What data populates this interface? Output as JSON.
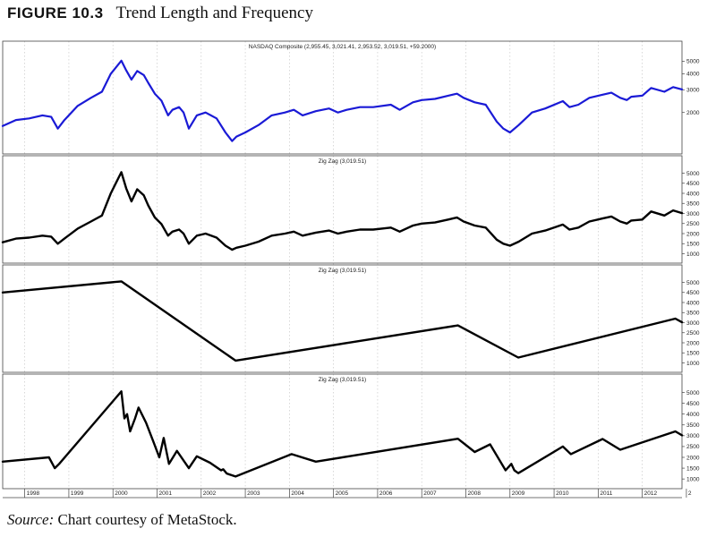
{
  "figure": {
    "number": "FIGURE 10.3",
    "title": "Trend Length and Frequency"
  },
  "source": {
    "label": "Source:",
    "text": "Chart courtesy of MetaStock."
  },
  "chart_data": {
    "type": "line",
    "x_labels": [
      "1998",
      "1999",
      "2000",
      "2001",
      "2002",
      "2003",
      "2004",
      "2005",
      "2006",
      "2007",
      "2008",
      "2009",
      "2010",
      "2011",
      "2012",
      "2"
    ],
    "x_range": [
      1997.5,
      2012.9
    ],
    "grid": true,
    "panels": [
      {
        "title": "NASDAQ Composite (2,955.45, 3,021.41, 2,953.52, 3,019.51, +59.2000)",
        "scale": "log",
        "y_range": [
          1050,
          6500
        ],
        "y_ticks": [
          5000,
          4000,
          3000,
          2000
        ],
        "color": "#1a1ad6",
        "x": [
          1997.5,
          1997.8,
          1998.1,
          1998.4,
          1998.6,
          1998.75,
          1998.9,
          1999.2,
          1999.5,
          1999.75,
          1999.95,
          2000.19,
          2000.3,
          2000.42,
          2000.55,
          2000.7,
          2000.8,
          2000.95,
          2001.1,
          2001.25,
          2001.35,
          2001.5,
          2001.6,
          2001.72,
          2001.9,
          2002.1,
          2002.35,
          2002.55,
          2002.7,
          2002.8,
          2003.0,
          2003.3,
          2003.6,
          2003.9,
          2004.1,
          2004.3,
          2004.6,
          2004.9,
          2005.1,
          2005.3,
          2005.6,
          2005.9,
          2006.3,
          2006.5,
          2006.8,
          2007.0,
          2007.3,
          2007.6,
          2007.8,
          2007.95,
          2008.2,
          2008.45,
          2008.7,
          2008.85,
          2009.0,
          2009.2,
          2009.5,
          2009.8,
          2010.2,
          2010.35,
          2010.55,
          2010.8,
          2011.1,
          2011.3,
          2011.5,
          2011.65,
          2011.75,
          2012.0,
          2012.2,
          2012.5,
          2012.7,
          2012.9
        ],
        "y": [
          1570,
          1750,
          1800,
          1900,
          1850,
          1500,
          1750,
          2250,
          2600,
          2900,
          4000,
          5048,
          4250,
          3600,
          4200,
          3900,
          3400,
          2800,
          2470,
          1900,
          2100,
          2200,
          2000,
          1500,
          1900,
          2000,
          1800,
          1400,
          1200,
          1300,
          1400,
          1600,
          1900,
          2000,
          2100,
          1900,
          2050,
          2150,
          2000,
          2100,
          2200,
          2200,
          2300,
          2100,
          2400,
          2500,
          2550,
          2700,
          2800,
          2600,
          2400,
          2300,
          1700,
          1500,
          1400,
          1600,
          2000,
          2150,
          2450,
          2200,
          2300,
          2600,
          2750,
          2850,
          2600,
          2500,
          2650,
          2700,
          3100,
          2900,
          3150,
          3019.51
        ]
      },
      {
        "title": "Zig Zag (3,019.51)",
        "scale": "linear",
        "y_range": [
          800,
          5600
        ],
        "y_ticks": [
          5000,
          4500,
          4000,
          3500,
          3000,
          2500,
          2000,
          1500,
          1000
        ],
        "color": "#000000",
        "x": [
          1997.5,
          1997.8,
          1998.1,
          1998.4,
          1998.6,
          1998.75,
          1998.9,
          1999.2,
          1999.5,
          1999.75,
          1999.95,
          2000.19,
          2000.3,
          2000.42,
          2000.55,
          2000.7,
          2000.8,
          2000.95,
          2001.1,
          2001.25,
          2001.35,
          2001.5,
          2001.6,
          2001.72,
          2001.9,
          2002.1,
          2002.35,
          2002.55,
          2002.7,
          2002.8,
          2003.0,
          2003.3,
          2003.6,
          2003.9,
          2004.1,
          2004.3,
          2004.6,
          2004.9,
          2005.1,
          2005.3,
          2005.6,
          2005.9,
          2006.3,
          2006.5,
          2006.8,
          2007.0,
          2007.3,
          2007.6,
          2007.8,
          2007.95,
          2008.2,
          2008.45,
          2008.7,
          2008.85,
          2009.0,
          2009.2,
          2009.5,
          2009.8,
          2010.2,
          2010.35,
          2010.55,
          2010.8,
          2011.1,
          2011.3,
          2011.5,
          2011.65,
          2011.75,
          2012.0,
          2012.2,
          2012.5,
          2012.7,
          2012.9
        ],
        "y": [
          1570,
          1750,
          1800,
          1900,
          1850,
          1500,
          1750,
          2250,
          2600,
          2900,
          4000,
          5048,
          4250,
          3600,
          4200,
          3900,
          3400,
          2800,
          2470,
          1900,
          2100,
          2200,
          2000,
          1500,
          1900,
          2000,
          1800,
          1400,
          1200,
          1300,
          1400,
          1600,
          1900,
          2000,
          2100,
          1900,
          2050,
          2150,
          2000,
          2100,
          2200,
          2200,
          2300,
          2100,
          2400,
          2500,
          2550,
          2700,
          2800,
          2600,
          2400,
          2300,
          1700,
          1500,
          1400,
          1600,
          2000,
          2150,
          2450,
          2200,
          2300,
          2600,
          2750,
          2850,
          2600,
          2500,
          2650,
          2700,
          3100,
          2900,
          3150,
          3019.51
        ]
      },
      {
        "title": "Zig Zag (3,019.51)",
        "scale": "linear",
        "y_range": [
          800,
          5600
        ],
        "y_ticks": [
          5000,
          4500,
          4000,
          3500,
          3000,
          2500,
          2000,
          1500,
          1000
        ],
        "color": "#000000",
        "x": [
          1997.5,
          2000.19,
          2002.78,
          2007.82,
          2009.19,
          2012.75,
          2012.9
        ],
        "y": [
          4500,
          5048,
          1114,
          2861,
          1268,
          3200,
          3019.51
        ]
      },
      {
        "title": "Zig Zag (3,019.51)",
        "scale": "linear",
        "y_range": [
          800,
          5600
        ],
        "y_ticks": [
          5000,
          4500,
          4000,
          3500,
          3000,
          2500,
          2000,
          1500,
          1000
        ],
        "color": "#000000",
        "x": [
          1997.5,
          1998.55,
          1998.68,
          1998.78,
          2000.19,
          2000.26,
          2000.32,
          2000.39,
          2000.5,
          2000.58,
          2000.75,
          2000.92,
          2001.05,
          2001.15,
          2001.27,
          2001.45,
          2001.72,
          2001.9,
          2002.2,
          2002.45,
          2002.5,
          2002.58,
          2002.78,
          2004.05,
          2004.6,
          2007.82,
          2008.2,
          2008.55,
          2008.9,
          2009.03,
          2009.1,
          2009.19,
          2010.2,
          2010.38,
          2011.1,
          2011.5,
          2012.75,
          2012.9
        ],
        "y": [
          1800,
          2000,
          1500,
          1700,
          5048,
          3800,
          4000,
          3200,
          3800,
          4300,
          3600,
          2700,
          2000,
          2900,
          1700,
          2300,
          1500,
          2050,
          1750,
          1400,
          1450,
          1250,
          1114,
          2150,
          1800,
          2861,
          2250,
          2600,
          1400,
          1700,
          1400,
          1268,
          2500,
          2150,
          2850,
          2350,
          3200,
          3019.51
        ]
      }
    ]
  }
}
